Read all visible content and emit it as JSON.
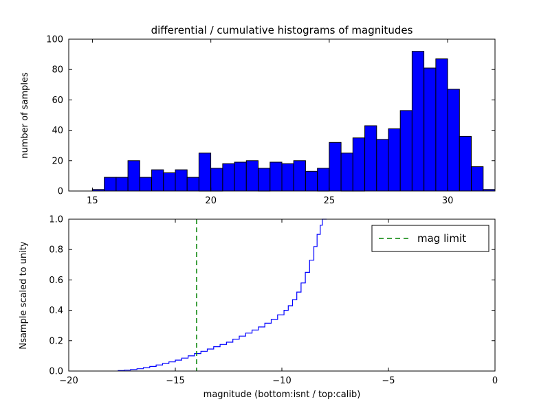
{
  "figure": {
    "title": "differential / cumulative histograms of magnitudes",
    "background": "#ffffff"
  },
  "legend": {
    "label": "mag limit"
  },
  "chart_data": [
    {
      "type": "bar",
      "id": "differential-histogram",
      "ylabel": "number of samples",
      "xlim": [
        14,
        32
      ],
      "ylim": [
        0,
        100
      ],
      "xticks": {
        "values": [
          15,
          20,
          25,
          30
        ],
        "labels": [
          "15",
          "20",
          "25",
          "30"
        ]
      },
      "yticks": {
        "values": [
          0,
          20,
          40,
          60,
          80,
          100
        ],
        "labels": [
          "0",
          "20",
          "40",
          "60",
          "80",
          "100"
        ]
      },
      "bin_start": 15.0,
      "bin_width": 0.5,
      "values": [
        1,
        9,
        9,
        20,
        9,
        14,
        12,
        14,
        9,
        25,
        15,
        18,
        19,
        20,
        15,
        19,
        18,
        20,
        13,
        15,
        32,
        25,
        35,
        43,
        34,
        41,
        53,
        92,
        81,
        87,
        67,
        36,
        16,
        1
      ],
      "bar_color": "#0000ff",
      "bar_edge_color": "#000000",
      "grid": false
    },
    {
      "type": "line",
      "id": "cumulative-histogram",
      "xlabel": "magnitude (bottom:isnt / top:calib)",
      "ylabel": "Nsample scaled to unity",
      "xlim": [
        -20,
        0
      ],
      "ylim": [
        0,
        1
      ],
      "xticks": {
        "values": [
          -20,
          -15,
          -10,
          -5,
          0
        ],
        "labels": [
          "−20",
          "−15",
          "−10",
          "−5",
          "0"
        ]
      },
      "yticks": {
        "values": [
          0,
          0.2,
          0.4,
          0.6,
          0.8,
          1
        ],
        "labels": [
          "0.0",
          "0.2",
          "0.4",
          "0.6",
          "0.8",
          "1.0"
        ]
      },
      "step": true,
      "line_color": "#0000ff",
      "x": [
        -17.7,
        -17.4,
        -17.1,
        -16.8,
        -16.5,
        -16.2,
        -15.9,
        -15.6,
        -15.3,
        -15.0,
        -14.7,
        -14.4,
        -14.1,
        -13.8,
        -13.5,
        -13.2,
        -12.9,
        -12.6,
        -12.3,
        -12.0,
        -11.7,
        -11.4,
        -11.1,
        -10.8,
        -10.5,
        -10.2,
        -9.9,
        -9.7,
        -9.5,
        -9.3,
        -9.1,
        -8.9,
        -8.7,
        -8.5,
        -8.35,
        -8.2,
        -8.1,
        -7.9
      ],
      "y": [
        0.003,
        0.006,
        0.01,
        0.015,
        0.022,
        0.03,
        0.04,
        0.05,
        0.06,
        0.072,
        0.085,
        0.1,
        0.115,
        0.13,
        0.145,
        0.16,
        0.175,
        0.19,
        0.21,
        0.23,
        0.25,
        0.27,
        0.29,
        0.315,
        0.34,
        0.37,
        0.4,
        0.43,
        0.47,
        0.52,
        0.58,
        0.65,
        0.73,
        0.82,
        0.9,
        0.96,
        1.0,
        1.0
      ],
      "annotations": {
        "mag_limit": {
          "x": -14,
          "color": "#008000",
          "linestyle": "dashed",
          "label": "mag limit"
        }
      },
      "legend_position": "upper right",
      "grid": false
    }
  ]
}
